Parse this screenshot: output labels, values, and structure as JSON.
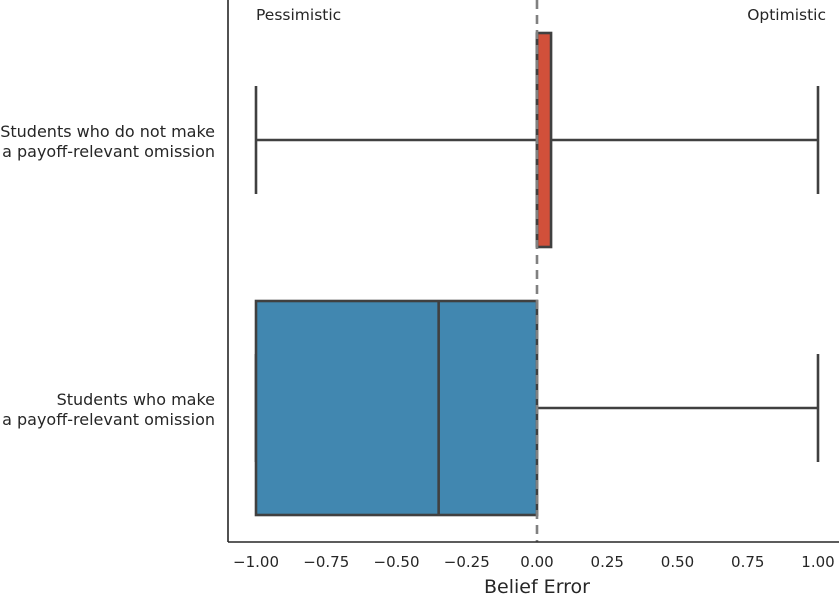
{
  "chart_data": {
    "type": "boxplot",
    "orientation": "horizontal",
    "xlabel": "Belief Error",
    "ylabel": "",
    "xlim": [
      -1.1,
      1.07
    ],
    "xticks": [
      -1.0,
      -0.75,
      -0.5,
      -0.25,
      0.0,
      0.25,
      0.5,
      0.75,
      1.0
    ],
    "xtick_labels": [
      "−1.00",
      "−0.75",
      "−0.50",
      "−0.25",
      "0.00",
      "0.25",
      "0.50",
      "0.75",
      "1.00"
    ],
    "grid": false,
    "reference_line": {
      "x": 0.0,
      "style": "dashed",
      "color": "#808080"
    },
    "annotations": [
      {
        "text": "Pessimistic",
        "position": "top-left"
      },
      {
        "text": "Optimistic",
        "position": "top-right"
      }
    ],
    "categories": [
      [
        "Students who do not make",
        "a payoff-relevant omission"
      ],
      [
        "Students who make",
        "a payoff-relevant omission"
      ]
    ],
    "boxes": [
      {
        "whisker_low": -1.0,
        "q1": 0.0,
        "median": 0.0,
        "q3": 0.05,
        "whisker_high": 1.0,
        "color": "#d1503a"
      },
      {
        "whisker_low": -1.0,
        "q1": -1.0,
        "median": -0.35,
        "q3": 0.0,
        "whisker_high": 1.0,
        "color": "#4187b0"
      }
    ]
  }
}
